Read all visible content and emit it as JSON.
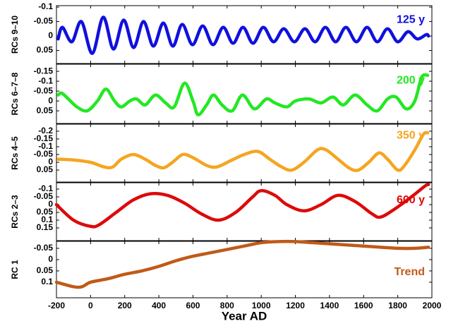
{
  "chart_data": [
    {
      "type": "line",
      "ylabel": "RCs 9–10",
      "annotation": "125 y",
      "y_reversed": true,
      "xlim": [
        -200,
        2000
      ],
      "ylim": [
        -0.105,
        0.095
      ],
      "yticks": [
        -0.1,
        -0.05,
        0,
        0.05
      ],
      "series": [
        {
          "name": "RCs 9–10",
          "color": "#1010dd",
          "x": [
            -190,
            -165,
            -110,
            -54,
            10,
            74,
            134,
            194,
            252,
            310,
            368,
            426,
            482,
            537,
            597,
            657,
            717,
            777,
            835,
            893,
            952,
            1012,
            1072,
            1132,
            1194,
            1256,
            1316,
            1376,
            1436,
            1496,
            1558,
            1620,
            1680,
            1740,
            1800,
            1860,
            1914,
            1967,
            1980
          ],
          "values": [
            0.01,
            -0.03,
            0.02,
            -0.05,
            0.06,
            -0.065,
            0.045,
            -0.055,
            0.04,
            -0.05,
            0.035,
            -0.045,
            0.035,
            -0.04,
            0.03,
            -0.035,
            0.03,
            -0.03,
            0.025,
            -0.03,
            0.025,
            -0.03,
            0.02,
            -0.025,
            0.02,
            -0.025,
            0.02,
            -0.03,
            0.02,
            -0.03,
            0.02,
            -0.03,
            0.02,
            -0.025,
            0.02,
            -0.015,
            0.01,
            -0.005,
            0.0
          ]
        }
      ]
    },
    {
      "type": "line",
      "ylabel": "RCs 6–7–8",
      "annotation": "200 y",
      "y_reversed": true,
      "xlim": [
        -200,
        2000
      ],
      "ylim": [
        -0.186,
        0.114
      ],
      "yticks": [
        -0.15,
        -0.1,
        -0.05,
        0,
        0.05
      ],
      "series": [
        {
          "name": "RCs 6–7–8",
          "color": "#22e822",
          "x": [
            -190,
            -170,
            -130,
            -80,
            -20,
            40,
            90,
            140,
            180,
            230,
            270,
            320,
            380,
            440,
            490,
            550,
            600,
            630,
            680,
            720,
            770,
            830,
            890,
            960,
            1030,
            1080,
            1150,
            1200,
            1280,
            1350,
            1420,
            1480,
            1550,
            1620,
            1680,
            1740,
            1790,
            1850,
            1900,
            1940,
            1975
          ],
          "values": [
            -0.03,
            -0.04,
            -0.01,
            0.03,
            0.05,
            0.0,
            -0.06,
            0.0,
            0.03,
            0.0,
            -0.01,
            0.02,
            -0.03,
            0.01,
            0.03,
            -0.09,
            0.0,
            0.07,
            0.02,
            -0.03,
            0.02,
            0.05,
            -0.03,
            0.04,
            -0.01,
            0.01,
            0.03,
            0.0,
            -0.01,
            0.01,
            -0.02,
            0.02,
            -0.03,
            0.02,
            0.05,
            -0.01,
            -0.02,
            0.04,
            0.0,
            -0.12,
            -0.13
          ]
        }
      ]
    },
    {
      "type": "line",
      "ylabel": "RCs 4–5",
      "annotation": "350 y",
      "y_reversed": true,
      "xlim": [
        -200,
        2000
      ],
      "ylim": [
        -0.245,
        0.127
      ],
      "yticks": [
        -0.2,
        -0.15,
        -0.1,
        -0.05,
        0,
        0.05
      ],
      "series": [
        {
          "name": "RCs 4–5",
          "color": "#f5a520",
          "x": [
            -190,
            -100,
            0,
            80,
            130,
            180,
            250,
            320,
            380,
            430,
            480,
            540,
            600,
            680,
            740,
            820,
            900,
            980,
            1050,
            1120,
            1180,
            1250,
            1330,
            1380,
            1450,
            1520,
            1570,
            1630,
            1690,
            1740,
            1800,
            1840,
            1900,
            1950,
            1975
          ],
          "values": [
            -0.02,
            -0.015,
            0.0,
            0.03,
            0.03,
            -0.02,
            -0.05,
            -0.02,
            0.02,
            0.035,
            0.0,
            -0.05,
            -0.03,
            0.02,
            0.03,
            -0.01,
            -0.05,
            -0.07,
            -0.02,
            0.03,
            0.05,
            0.0,
            -0.08,
            -0.08,
            -0.02,
            0.04,
            0.05,
            0.0,
            -0.06,
            -0.02,
            0.05,
            0.02,
            -0.08,
            -0.18,
            -0.19
          ]
        }
      ]
    },
    {
      "type": "line",
      "ylabel": "RCs 2–3",
      "annotation": "600 y",
      "y_reversed": true,
      "xlim": [
        -200,
        2000
      ],
      "ylim": [
        -0.141,
        0.232
      ],
      "yticks": [
        -0.1,
        -0.05,
        0,
        0.05,
        0.1,
        0.15
      ],
      "series": [
        {
          "name": "RCs 2–3",
          "color": "#dd0a0a",
          "x": [
            -200,
            -100,
            0,
            50,
            150,
            250,
            350,
            450,
            550,
            650,
            750,
            850,
            950,
            1000,
            1080,
            1150,
            1250,
            1350,
            1450,
            1550,
            1650,
            1700,
            1780,
            1880,
            1960,
            1980
          ],
          "values": [
            0.0,
            0.1,
            0.14,
            0.13,
            0.05,
            -0.03,
            -0.07,
            -0.06,
            -0.01,
            0.06,
            0.1,
            0.05,
            -0.05,
            -0.09,
            -0.06,
            0.0,
            0.04,
            0.0,
            -0.06,
            -0.02,
            0.06,
            0.08,
            0.03,
            -0.05,
            -0.12,
            -0.13
          ]
        }
      ]
    },
    {
      "type": "line",
      "ylabel": "RC 1",
      "annotation": "Trend",
      "y_reversed": true,
      "xlabel": "Year AD",
      "xlim": [
        -200,
        2000
      ],
      "xticks": [
        -200,
        0,
        200,
        400,
        600,
        800,
        1000,
        1200,
        1400,
        1600,
        1800,
        2000
      ],
      "ylim": [
        -0.081,
        0.169
      ],
      "yticks": [
        -0.05,
        0,
        0.05,
        0.1
      ],
      "series": [
        {
          "name": "RC 1",
          "color": "#c05a18",
          "x": [
            -200,
            -100,
            -50,
            0,
            100,
            200,
            300,
            400,
            500,
            600,
            700,
            800,
            900,
            1000,
            1100,
            1200,
            1300,
            1400,
            1500,
            1600,
            1700,
            1800,
            1900,
            1980
          ],
          "values": [
            0.1,
            0.12,
            0.12,
            0.1,
            0.085,
            0.065,
            0.05,
            0.03,
            0.005,
            -0.015,
            -0.03,
            -0.045,
            -0.06,
            -0.075,
            -0.08,
            -0.08,
            -0.075,
            -0.07,
            -0.065,
            -0.06,
            -0.055,
            -0.05,
            -0.05,
            -0.055
          ]
        }
      ]
    }
  ]
}
